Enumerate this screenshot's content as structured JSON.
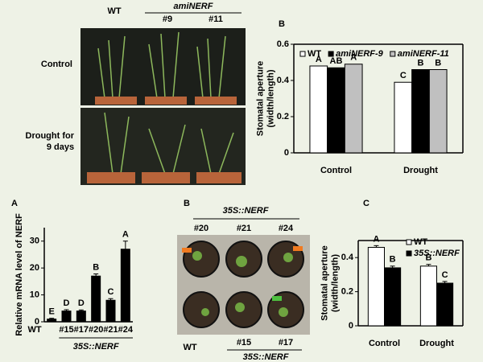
{
  "chart_data": [
    {
      "type": "bar",
      "panel": "B",
      "y_label": [
        "Stomatal aperture",
        "(width/length)"
      ],
      "categories": [
        "Control",
        "Drought"
      ],
      "series": [
        {
          "name": "WT",
          "color": "#ffffff",
          "values": [
            0.48,
            0.39
          ],
          "letters": [
            "A",
            "C"
          ]
        },
        {
          "name": "amiNERF-9",
          "color": "#000000",
          "values": [
            0.47,
            0.46
          ],
          "letters": [
            "AB",
            "B"
          ]
        },
        {
          "name": "amiNERF-11",
          "color": "#c0c0c0",
          "values": [
            0.49,
            0.46
          ],
          "letters": [
            "A",
            "B"
          ]
        }
      ],
      "ylim": [
        0,
        0.6
      ],
      "yticks": [
        0,
        0.2,
        0.4,
        0.6
      ],
      "legend": "top"
    },
    {
      "type": "bar",
      "panel": "A",
      "y_label": [
        "Relative mRNA level of NERF"
      ],
      "categories": [
        "WT",
        "#15",
        "#17",
        "#20",
        "#21",
        "#24"
      ],
      "values": [
        1,
        4,
        4,
        17,
        8,
        27
      ],
      "errors": [
        0.3,
        0.5,
        0.4,
        0.8,
        0.6,
        3
      ],
      "letters": [
        "E",
        "D",
        "D",
        "B",
        "C",
        "A"
      ],
      "color": "#000000",
      "group_label": "35S::NERF",
      "ylim": [
        0,
        35
      ],
      "yticks": [
        0,
        10,
        20,
        30
      ]
    },
    {
      "type": "bar",
      "panel": "C",
      "y_label": [
        "Stomatal aperture",
        "(width/length)"
      ],
      "categories": [
        "Control",
        "Drought"
      ],
      "series": [
        {
          "name": "WT",
          "color": "#ffffff",
          "values": [
            0.46,
            0.35
          ],
          "errors": [
            0.01,
            0.01
          ],
          "letters": [
            "A",
            "B"
          ]
        },
        {
          "name": "35S::NERF",
          "color": "#000000",
          "values": [
            0.34,
            0.25
          ],
          "errors": [
            0.01,
            0.01
          ],
          "letters": [
            "B",
            "C"
          ]
        }
      ],
      "ylim": [
        0,
        0.5
      ],
      "yticks": [
        0,
        0.2,
        0.4
      ],
      "legend": "top-right"
    }
  ],
  "photos": {
    "top": {
      "wt": "WT",
      "line": "amiNERF",
      "n9": "#9",
      "n11": "#11",
      "row1": "Control",
      "row2": "Drought for 9 days"
    },
    "bottom": {
      "panel": "B",
      "group_top": "35S::NERF",
      "n20": "#20",
      "n21": "#21",
      "n24": "#24",
      "wt": "WT",
      "n15": "#15",
      "n17": "#17",
      "group_bottom": "35S::NERF"
    }
  }
}
